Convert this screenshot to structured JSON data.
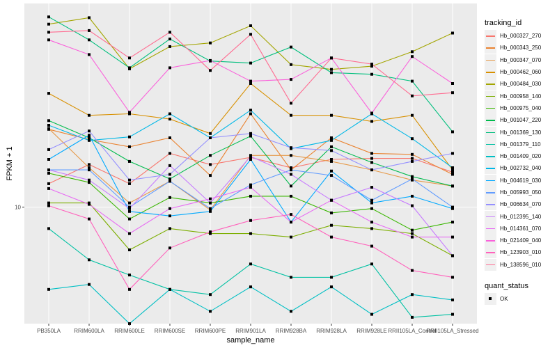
{
  "chart_data": {
    "type": "line",
    "xlabel": "sample_name",
    "ylabel": "FPKM + 1",
    "yscale": "log10",
    "ylim": [
      4.4,
      42
    ],
    "y_ticks": [
      10
    ],
    "y_tick_labels": [
      "10"
    ],
    "grid": true,
    "legend_placement": "right",
    "categories": [
      "PB350LA",
      "RRIM600LA",
      "RRIM600LE",
      "RRIM600SE",
      "RRIM600PE",
      "RRIM901LA",
      "RRIM928BA",
      "RRIM928LA",
      "RRIM928LE",
      "RRII105LA_Control",
      "RRII105LA_Stressed"
    ],
    "legend_title": "tracking_id",
    "legend2_title": "quant_status",
    "legend2_items": [
      {
        "label": "OK"
      }
    ],
    "series": [
      {
        "name": "Hb_000327_270",
        "color": "#F8766D",
        "values": [
          11.8,
          13.5,
          11.8,
          14.6,
          13.5,
          14.2,
          13.2,
          14.0,
          14.1,
          14.1,
          12.8
        ]
      },
      {
        "name": "Hb_000343_250",
        "color": "#EA8331",
        "values": [
          17.3,
          16.1,
          15.3,
          16.3,
          12.5,
          19.3,
          13.0,
          16.3,
          14.6,
          14.5,
          12.6
        ]
      },
      {
        "name": "Hb_000347_070",
        "color": "#E69A4A",
        "values": [
          17.4,
          13.2,
          10.3,
          12.0,
          9.8,
          14.4,
          14.4,
          13.8,
          13.0,
          12.1,
          11.6
        ]
      },
      {
        "name": "Hb_000462_060",
        "color": "#D89000",
        "values": [
          22.3,
          19.1,
          19.3,
          18.6,
          16.8,
          23.9,
          19.1,
          19.1,
          18.3,
          19.1,
          13.0
        ]
      },
      {
        "name": "Hb_000484_030",
        "color": "#A3A500",
        "values": [
          36.3,
          38.0,
          26.5,
          31.0,
          31.8,
          35.9,
          27.3,
          26.4,
          27.0,
          29.9,
          34.1
        ]
      },
      {
        "name": "Hb_000958_140",
        "color": "#7CAE00",
        "values": [
          10.3,
          10.3,
          7.4,
          8.6,
          8.3,
          8.3,
          8.1,
          8.8,
          8.6,
          8.3,
          7.1
        ]
      },
      {
        "name": "Hb_000975_040",
        "color": "#39B600",
        "values": [
          12.7,
          11.9,
          9.2,
          10.7,
          10.3,
          10.8,
          10.8,
          9.6,
          9.9,
          8.5,
          9.0
        ]
      },
      {
        "name": "Hb_001047_220",
        "color": "#00BB4E",
        "values": [
          18.4,
          16.3,
          13.8,
          12.2,
          14.4,
          16.5,
          11.6,
          15.3,
          13.7,
          12.4,
          11.6
        ]
      },
      {
        "name": "Hb_001369_130",
        "color": "#00BF7D",
        "values": [
          38.2,
          32.5,
          26.7,
          32.7,
          28.0,
          27.6,
          30.9,
          25.8,
          25.5,
          24.3,
          17.0
        ]
      },
      {
        "name": "Hb_001379_110",
        "color": "#00C1A3",
        "values": [
          8.6,
          6.9,
          6.2,
          5.6,
          5.4,
          6.7,
          6.1,
          6.1,
          6.7,
          4.6,
          4.7
        ]
      },
      {
        "name": "Hb_001409_020",
        "color": "#00BFC4",
        "values": [
          5.6,
          5.8,
          4.4,
          5.6,
          4.8,
          5.7,
          4.8,
          5.7,
          4.7,
          5.4,
          5.2
        ]
      },
      {
        "name": "Hb_002732_040",
        "color": "#00B8E7",
        "values": [
          17.8,
          16.0,
          16.4,
          19.3,
          16.3,
          19.8,
          15.1,
          16.0,
          19.3,
          16.2,
          13.2
        ]
      },
      {
        "name": "Hb_004619_030",
        "color": "#00A9FF",
        "values": [
          14.0,
          16.6,
          9.7,
          9.4,
          9.7,
          14.0,
          9.0,
          12.9,
          10.3,
          10.8,
          9.9
        ]
      },
      {
        "name": "Hb_005993_050",
        "color": "#619CFF",
        "values": [
          13.0,
          13.0,
          10.0,
          12.0,
          9.9,
          11.7,
          13.0,
          12.5,
          10.5,
          12.2,
          10.0
        ]
      },
      {
        "name": "Hb_006634_070",
        "color": "#9590FF",
        "values": [
          15.0,
          17.1,
          12.1,
          12.6,
          16.3,
          16.8,
          15.2,
          14.9,
          13.0,
          13.8,
          14.6
        ]
      },
      {
        "name": "Hb_012395_140",
        "color": "#C77CFF",
        "values": [
          13.0,
          12.1,
          9.9,
          13.4,
          10.3,
          14.3,
          12.6,
          10.5,
          11.5,
          10.1,
          7.1
        ]
      },
      {
        "name": "Hb_014361_070",
        "color": "#E76BF3",
        "values": [
          11.4,
          10.2,
          8.3,
          9.9,
          10.6,
          11.5,
          9.0,
          10.5,
          9.0,
          8.1,
          8.1
        ]
      },
      {
        "name": "Hb_021409_040",
        "color": "#FA62DB",
        "values": [
          32.5,
          29.3,
          19.5,
          26.7,
          28.1,
          24.3,
          24.6,
          28.6,
          19.4,
          28.9,
          23.9
        ]
      },
      {
        "name": "Hb_123903_010",
        "color": "#FF62BC",
        "values": [
          10.1,
          9.2,
          5.6,
          7.5,
          8.4,
          9.1,
          9.5,
          8.1,
          7.6,
          6.4,
          6.1
        ]
      },
      {
        "name": "Hb_138596_010",
        "color": "#FF6C91",
        "values": [
          34.3,
          34.7,
          28.6,
          34.3,
          26.2,
          33.8,
          20.8,
          28.6,
          27.4,
          21.9,
          22.4
        ]
      }
    ]
  }
}
